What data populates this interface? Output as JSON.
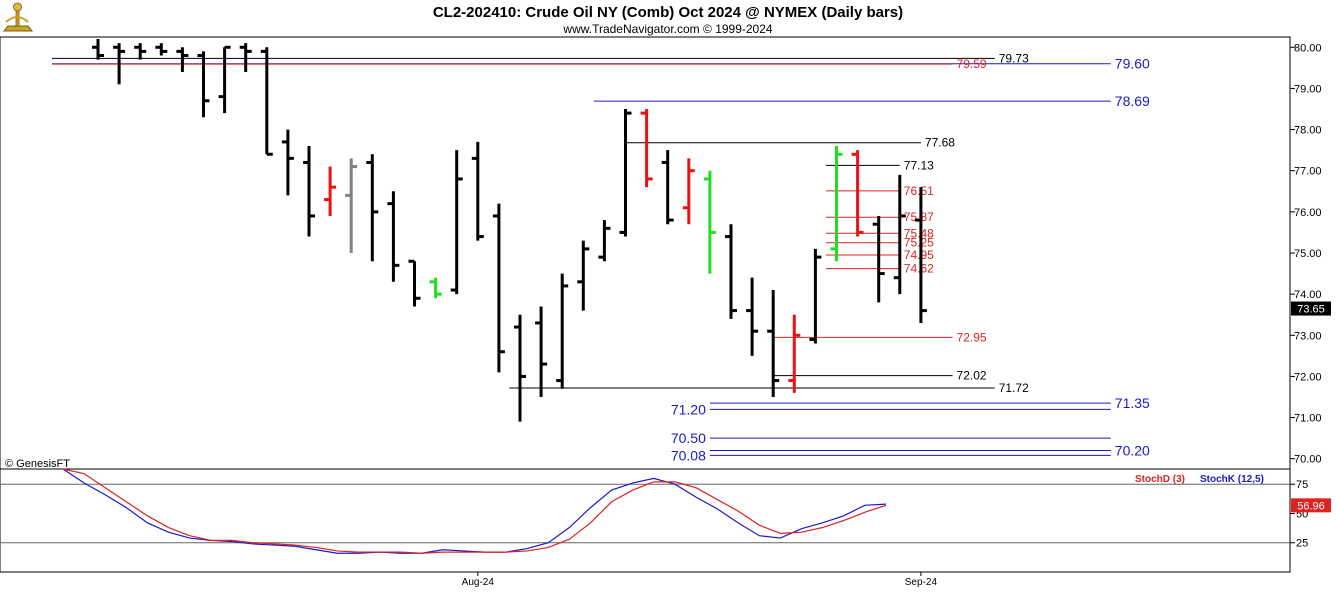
{
  "header": {
    "title": "CL2-202410:  Crude Oil NY (Comb) Oct 2024 @ NYMEX  (Daily bars)",
    "subtitle": "www.TradeNavigator.com © 1999-2024",
    "watermark": "© GenesisFT"
  },
  "colors": {
    "background": "#ffffff",
    "bar_default": "#000000",
    "bar_up": "#22dd22",
    "bar_down": "#ee1111",
    "bar_neutral": "#808080",
    "level_blue": "#1a1acc",
    "level_red": "#dd2222",
    "level_black": "#000000",
    "stoch_d": "#dd2222",
    "stoch_k": "#1a1acc",
    "last_price_bg": "#000000",
    "stoch_last_bg": "#dd2222"
  },
  "chart_data": [
    {
      "type": "ohlc",
      "name": "price",
      "ylim": [
        69.75,
        80.25
      ],
      "y_ticks": [
        "80.00",
        "79.00",
        "78.00",
        "77.00",
        "76.00",
        "75.00",
        "74.00",
        "73.00",
        "72.00",
        "71.00",
        "70.00"
      ],
      "x_tick_labels": [
        {
          "label": "Aug-24",
          "bar": 18
        },
        {
          "label": "Sep-24",
          "bar": 39
        }
      ],
      "last_price": "73.65",
      "bars": [
        {
          "o": 80.0,
          "h": 80.2,
          "l": 79.7,
          "c": 79.8,
          "color": "default"
        },
        {
          "o": 80.0,
          "h": 80.1,
          "l": 79.1,
          "c": 79.9,
          "color": "default"
        },
        {
          "o": 80.0,
          "h": 80.1,
          "l": 79.7,
          "c": 79.9,
          "color": "default"
        },
        {
          "o": 80.0,
          "h": 80.1,
          "l": 79.8,
          "c": 79.9,
          "color": "default"
        },
        {
          "o": 79.9,
          "h": 80.0,
          "l": 79.4,
          "c": 79.8,
          "color": "default"
        },
        {
          "o": 79.8,
          "h": 79.9,
          "l": 78.3,
          "c": 78.7,
          "color": "default"
        },
        {
          "o": 78.8,
          "h": 80.0,
          "l": 78.4,
          "c": 80.0,
          "color": "default"
        },
        {
          "o": 80.0,
          "h": 80.1,
          "l": 79.4,
          "c": 79.9,
          "color": "default"
        },
        {
          "o": 79.9,
          "h": 80.0,
          "l": 77.4,
          "c": 77.4,
          "color": "default"
        },
        {
          "o": 77.7,
          "h": 78.0,
          "l": 76.4,
          "c": 77.3,
          "color": "default"
        },
        {
          "o": 77.2,
          "h": 77.6,
          "l": 75.4,
          "c": 75.9,
          "color": "default"
        },
        {
          "o": 76.3,
          "h": 77.1,
          "l": 75.9,
          "c": 76.6,
          "color": "down"
        },
        {
          "o": 76.4,
          "h": 77.3,
          "l": 75.0,
          "c": 77.1,
          "color": "neutral"
        },
        {
          "o": 77.2,
          "h": 77.4,
          "l": 74.8,
          "c": 76.0,
          "color": "default"
        },
        {
          "o": 76.2,
          "h": 76.5,
          "l": 74.3,
          "c": 74.7,
          "color": "default"
        },
        {
          "o": 74.8,
          "h": 74.8,
          "l": 73.7,
          "c": 73.9,
          "color": "default"
        },
        {
          "o": 74.3,
          "h": 74.4,
          "l": 73.9,
          "c": 74.0,
          "color": "up"
        },
        {
          "o": 74.1,
          "h": 77.5,
          "l": 74.0,
          "c": 76.8,
          "color": "default"
        },
        {
          "o": 77.3,
          "h": 77.7,
          "l": 75.3,
          "c": 75.4,
          "color": "default"
        },
        {
          "o": 75.9,
          "h": 76.2,
          "l": 72.1,
          "c": 72.6,
          "color": "default"
        },
        {
          "o": 73.2,
          "h": 73.5,
          "l": 70.9,
          "c": 72.0,
          "color": "default"
        },
        {
          "o": 73.3,
          "h": 73.7,
          "l": 71.5,
          "c": 72.3,
          "color": "default"
        },
        {
          "o": 71.9,
          "h": 74.5,
          "l": 71.7,
          "c": 74.2,
          "color": "default"
        },
        {
          "o": 74.3,
          "h": 75.3,
          "l": 73.6,
          "c": 75.1,
          "color": "default"
        },
        {
          "o": 74.9,
          "h": 75.8,
          "l": 74.8,
          "c": 75.6,
          "color": "default"
        },
        {
          "o": 75.5,
          "h": 78.5,
          "l": 75.4,
          "c": 78.4,
          "color": "default"
        },
        {
          "o": 78.4,
          "h": 78.5,
          "l": 76.6,
          "c": 76.8,
          "color": "down"
        },
        {
          "o": 77.2,
          "h": 77.5,
          "l": 75.7,
          "c": 75.8,
          "color": "default"
        },
        {
          "o": 76.1,
          "h": 77.3,
          "l": 75.7,
          "c": 77.0,
          "color": "down"
        },
        {
          "o": 76.8,
          "h": 77.0,
          "l": 74.5,
          "c": 75.5,
          "color": "up"
        },
        {
          "o": 75.4,
          "h": 75.7,
          "l": 73.4,
          "c": 73.6,
          "color": "default"
        },
        {
          "o": 73.6,
          "h": 74.4,
          "l": 72.5,
          "c": 73.1,
          "color": "default"
        },
        {
          "o": 73.1,
          "h": 74.1,
          "l": 71.5,
          "c": 71.9,
          "color": "default"
        },
        {
          "o": 71.9,
          "h": 73.5,
          "l": 71.6,
          "c": 73.0,
          "color": "down"
        },
        {
          "o": 72.9,
          "h": 75.1,
          "l": 72.8,
          "c": 74.9,
          "color": "default"
        },
        {
          "o": 75.1,
          "h": 77.6,
          "l": 74.8,
          "c": 77.4,
          "color": "up"
        },
        {
          "o": 77.4,
          "h": 77.5,
          "l": 75.4,
          "c": 75.5,
          "color": "down"
        },
        {
          "o": 75.7,
          "h": 75.9,
          "l": 73.8,
          "c": 74.5,
          "color": "default"
        },
        {
          "o": 74.4,
          "h": 76.9,
          "l": 74.0,
          "c": 75.9,
          "color": "default"
        },
        {
          "o": 75.8,
          "h": 76.6,
          "l": 73.3,
          "c": 73.6,
          "color": "default"
        }
      ],
      "levels": [
        {
          "value": 79.73,
          "label": "79.73",
          "color": "black",
          "from": "left",
          "to_bar": 42.5
        },
        {
          "value": 79.6,
          "label": "79.60",
          "color": "blue",
          "from": "left",
          "to_bar": 48
        },
        {
          "value": 79.59,
          "label": "79.59",
          "color": "red",
          "from": "left",
          "to_bar": 40.5
        },
        {
          "value": 78.69,
          "label": "78.69",
          "color": "blue",
          "from_bar": 23.5,
          "to_bar": 48
        },
        {
          "value": 77.68,
          "label": "77.68",
          "color": "black",
          "from_bar": 25,
          "to_bar": 39
        },
        {
          "value": 77.13,
          "label": "77.13",
          "color": "black",
          "from_bar": 34.5,
          "to_bar": 38
        },
        {
          "value": 76.51,
          "label": "76.51",
          "color": "red",
          "from_bar": 34.5,
          "to_bar": 38
        },
        {
          "value": 75.87,
          "label": "75.87",
          "color": "red",
          "from_bar": 34.5,
          "to_bar": 38
        },
        {
          "value": 75.48,
          "label": "75.48",
          "color": "red",
          "from_bar": 34.5,
          "to_bar": 38
        },
        {
          "value": 75.25,
          "label": "75.25",
          "color": "red",
          "from_bar": 34.5,
          "to_bar": 38
        },
        {
          "value": 74.95,
          "label": "74.95",
          "color": "red",
          "from_bar": 34.5,
          "to_bar": 38
        },
        {
          "value": 74.62,
          "label": "74.62",
          "color": "red",
          "from_bar": 34.5,
          "to_bar": 38
        },
        {
          "value": 72.95,
          "label": "72.95",
          "color": "red",
          "from_bar": 32,
          "to_bar": 40.5
        },
        {
          "value": 72.02,
          "label": "72.02",
          "color": "black",
          "from_bar": 32,
          "to_bar": 40.5
        },
        {
          "value": 71.72,
          "label": "71.72",
          "color": "black",
          "from_bar": 19.5,
          "to_bar": 42.5
        },
        {
          "value": 71.35,
          "label": "71.35",
          "color": "blue",
          "from_bar": 29,
          "to_bar": 48
        },
        {
          "value": 71.2,
          "label": "71.20",
          "color": "blue",
          "from_bar": 29,
          "to_bar": 48,
          "label_side": "left"
        },
        {
          "value": 70.5,
          "label": "70.50",
          "color": "blue",
          "from_bar": 29,
          "to_bar": 48,
          "label_side": "left"
        },
        {
          "value": 70.2,
          "label": "70.20",
          "color": "blue",
          "from_bar": 29,
          "to_bar": 48
        },
        {
          "value": 70.08,
          "label": "70.08",
          "color": "blue",
          "from_bar": 29,
          "to_bar": 48,
          "label_side": "left"
        }
      ]
    },
    {
      "type": "line",
      "name": "stochastic",
      "ylim": [
        0,
        88
      ],
      "y_ticks": [
        "75",
        "50",
        "25"
      ],
      "reference_lines": [
        75,
        25
      ],
      "legend": [
        {
          "name": "StochD (3)",
          "color": "red"
        },
        {
          "name": "StochK (12,5)",
          "color": "blue"
        }
      ],
      "last_value": "56.96",
      "series": [
        {
          "name": "StochK (12,5)",
          "values": [
            88,
            76,
            66,
            55,
            42,
            34,
            29,
            27,
            26,
            24,
            23,
            22,
            19,
            16,
            16,
            17,
            16,
            16,
            19,
            18,
            17,
            17,
            20,
            25,
            38,
            55,
            70,
            76,
            80,
            75,
            64,
            54,
            42,
            31,
            29,
            37,
            42,
            48,
            57,
            58
          ]
        },
        {
          "name": "StochD (3)",
          "values": [
            88,
            84,
            72,
            60,
            48,
            38,
            31,
            27,
            27,
            25,
            24,
            23,
            21,
            18,
            17,
            17,
            17,
            16,
            17,
            17,
            17,
            17,
            18,
            21,
            28,
            42,
            60,
            70,
            77,
            77,
            72,
            62,
            52,
            40,
            33,
            34,
            38,
            44,
            51,
            57
          ]
        }
      ]
    }
  ]
}
